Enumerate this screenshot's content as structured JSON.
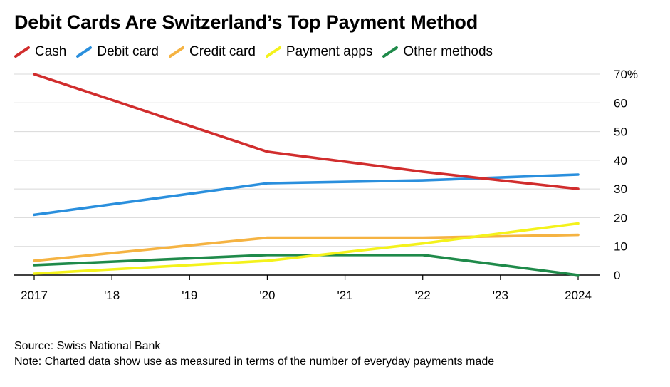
{
  "chart_data": {
    "type": "line",
    "title": "Debit Cards Are Switzerland’s Top Payment Method",
    "x": [
      2017,
      2018,
      2019,
      2020,
      2021,
      2022,
      2023,
      2024
    ],
    "x_tick_labels": [
      "2017",
      "'18",
      "'19",
      "'20",
      "'21",
      "'22",
      "'23",
      "2024"
    ],
    "y_tick_labels": [
      "70%",
      "60",
      "50",
      "40",
      "30",
      "20",
      "10",
      "0"
    ],
    "y_ticks": [
      70,
      60,
      50,
      40,
      30,
      20,
      10,
      0
    ],
    "ylim": [
      0,
      70
    ],
    "xlim": [
      2017,
      2024
    ],
    "grid": true,
    "legend_position": "top",
    "series": [
      {
        "name": "Cash",
        "color": "#d12d2d",
        "points": [
          [
            2017,
            70
          ],
          [
            2020,
            43
          ],
          [
            2022,
            36
          ],
          [
            2024,
            30
          ]
        ]
      },
      {
        "name": "Debit card",
        "color": "#2a8fdd",
        "points": [
          [
            2017,
            21
          ],
          [
            2020,
            32
          ],
          [
            2022,
            33
          ],
          [
            2024,
            35
          ]
        ]
      },
      {
        "name": "Credit card",
        "color": "#f5b342",
        "points": [
          [
            2017,
            5
          ],
          [
            2020,
            13
          ],
          [
            2022,
            13
          ],
          [
            2024,
            14
          ]
        ]
      },
      {
        "name": "Payment apps",
        "color": "#f4f21b",
        "points": [
          [
            2017,
            0.5
          ],
          [
            2020,
            5
          ],
          [
            2022,
            11
          ],
          [
            2024,
            18
          ]
        ]
      },
      {
        "name": "Other methods",
        "color": "#1f8a4a",
        "points": [
          [
            2017,
            3.5
          ],
          [
            2020,
            7
          ],
          [
            2022,
            7
          ],
          [
            2024,
            0
          ]
        ]
      }
    ]
  },
  "footer": {
    "source": "Source: Swiss National Bank",
    "note": "Note: Charted data show use as measured in terms of the number of everyday payments made"
  }
}
